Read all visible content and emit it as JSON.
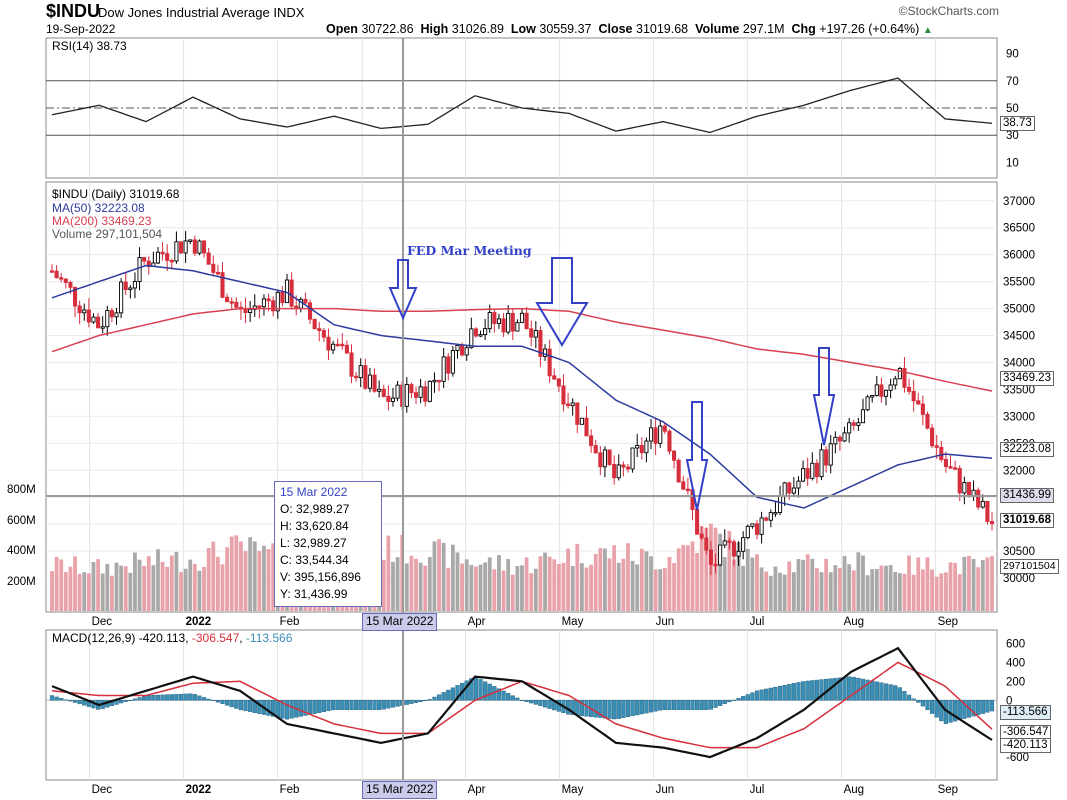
{
  "header": {
    "symbol": "$INDU",
    "name": "Dow Jones Industrial Average INDX",
    "date": "19-Sep-2022",
    "brand": "©StockCharts.com",
    "open_label": "Open",
    "open": "30722.86",
    "high_label": "High",
    "high": "31026.89",
    "low_label": "Low",
    "low": "30559.37",
    "close_label": "Close",
    "close": "31019.68",
    "volume_label": "Volume",
    "volume": "297.1M",
    "chg_label": "Chg",
    "chg": "+197.26 (+0.64%)"
  },
  "colors": {
    "up": "#000000",
    "down": "#d62e3c",
    "ma50": "#2b3b9e",
    "ma200": "#d94050",
    "volume_up": "#a9a9a9",
    "volume_down": "#e9a2aa",
    "macd_hist": "#3a8fb7",
    "annotation": "#3340c8"
  },
  "tooltip": {
    "date": "15 Mar 2022",
    "open": "O: 32,989.27",
    "high": "H: 33,620.84",
    "low": "L: 32,989.27",
    "close": "C: 33,544.34",
    "volume": "V: 395,156,896",
    "y": "Y: 31,436.99"
  },
  "crosshair_label": "15 Mar 2022",
  "annotation_text": "FED Mar Meeting",
  "chart_data": [
    {
      "type": "line",
      "panel": "RSI",
      "legend": "RSI(14) 38.73",
      "yticks": [
        90,
        70,
        50,
        30,
        10
      ],
      "reference_lines": [
        70,
        50,
        30
      ],
      "last_value": "38.73",
      "x": [
        "2021-11-22",
        "2021-12-06",
        "2021-12-20",
        "2022-01-03",
        "2022-01-18",
        "2022-02-01",
        "2022-02-15",
        "2022-03-01",
        "2022-03-15",
        "2022-04-01",
        "2022-04-18",
        "2022-05-02",
        "2022-05-16",
        "2022-06-01",
        "2022-06-15",
        "2022-07-01",
        "2022-07-15",
        "2022-08-01",
        "2022-08-16",
        "2022-09-01",
        "2022-09-19"
      ],
      "values": [
        45,
        52,
        40,
        58,
        42,
        36,
        44,
        35,
        38,
        59,
        50,
        46,
        33,
        40,
        32,
        44,
        52,
        63,
        72,
        42,
        38.73
      ],
      "ylim": [
        0,
        100
      ]
    },
    {
      "type": "candlestick",
      "panel": "price",
      "legend": [
        "$INDU (Daily) 31019.68",
        "MA(50) 32223.08",
        "MA(200) 33469.23",
        "Volume 297,101,504"
      ],
      "yticks": [
        37000,
        36500,
        36000,
        35500,
        35000,
        34500,
        34000,
        33500,
        33000,
        32500,
        32000,
        31500,
        31000,
        30500,
        30000
      ],
      "xticks": [
        "Dec",
        "2022",
        "Feb",
        "Ma",
        "Apr",
        "May",
        "Jun",
        "Jul",
        "Aug",
        "Sep"
      ],
      "volume_yticks": [
        "800M",
        "600M",
        "400M",
        "200M"
      ],
      "value_boxes": {
        "ma200": "33469.23",
        "ma50": "32223.08",
        "crosshair": "31436.99",
        "close": "31019.68",
        "volume": "297101504"
      },
      "x": [
        "2021-11-22",
        "2021-12-06",
        "2021-12-20",
        "2022-01-03",
        "2022-01-18",
        "2022-02-01",
        "2022-02-15",
        "2022-03-01",
        "2022-03-15",
        "2022-04-01",
        "2022-04-18",
        "2022-05-02",
        "2022-05-16",
        "2022-06-01",
        "2022-06-15",
        "2022-07-01",
        "2022-07-15",
        "2022-08-01",
        "2022-08-16",
        "2022-09-01",
        "2022-09-19"
      ],
      "close": [
        35700,
        34700,
        35900,
        36300,
        34900,
        35300,
        34300,
        33300,
        33544,
        34700,
        34800,
        33300,
        31800,
        32900,
        30200,
        31000,
        31900,
        32700,
        33900,
        32100,
        31020
      ],
      "ma50": [
        35200,
        35500,
        35800,
        35700,
        35500,
        35300,
        34700,
        34500,
        34400,
        34300,
        34300,
        34000,
        33300,
        32900,
        32300,
        31500,
        31300,
        31700,
        32100,
        32300,
        32223
      ],
      "ma200": [
        34200,
        34500,
        34700,
        34900,
        35000,
        35000,
        35000,
        34950,
        34950,
        34980,
        35000,
        34950,
        34750,
        34600,
        34450,
        34250,
        34150,
        34000,
        33850,
        33650,
        33469
      ],
      "volume_millions": [
        300,
        280,
        320,
        340,
        420,
        330,
        330,
        410,
        395,
        320,
        300,
        370,
        380,
        330,
        520,
        310,
        300,
        320,
        290,
        300,
        297
      ],
      "ylim": [
        29500,
        37200
      ]
    },
    {
      "type": "line",
      "panel": "MACD",
      "legend": {
        "label": "MACD(12,26,9)",
        "macd": "-420.113",
        "signal": "-306.547",
        "hist": "-113.566"
      },
      "yticks": [
        600,
        400,
        200,
        0,
        -600
      ],
      "value_boxes": {
        "hist": "-113.566",
        "signal": "-306.547",
        "macd": "-420.113"
      },
      "x": [
        "2021-11-22",
        "2021-12-06",
        "2021-12-20",
        "2022-01-03",
        "2022-01-18",
        "2022-02-01",
        "2022-02-15",
        "2022-03-01",
        "2022-03-15",
        "2022-04-01",
        "2022-04-18",
        "2022-05-02",
        "2022-05-16",
        "2022-06-01",
        "2022-06-15",
        "2022-07-01",
        "2022-07-15",
        "2022-08-01",
        "2022-08-16",
        "2022-09-01",
        "2022-09-19"
      ],
      "macd": [
        150,
        -50,
        100,
        250,
        100,
        -250,
        -350,
        -450,
        -350,
        250,
        200,
        -100,
        -450,
        -500,
        -600,
        -400,
        -100,
        300,
        550,
        -100,
        -420
      ],
      "signal": [
        100,
        50,
        50,
        180,
        200,
        -50,
        -250,
        -350,
        -350,
        0,
        200,
        50,
        -250,
        -400,
        -500,
        -500,
        -300,
        50,
        400,
        150,
        -306
      ],
      "ylim": [
        -800,
        700
      ]
    }
  ]
}
